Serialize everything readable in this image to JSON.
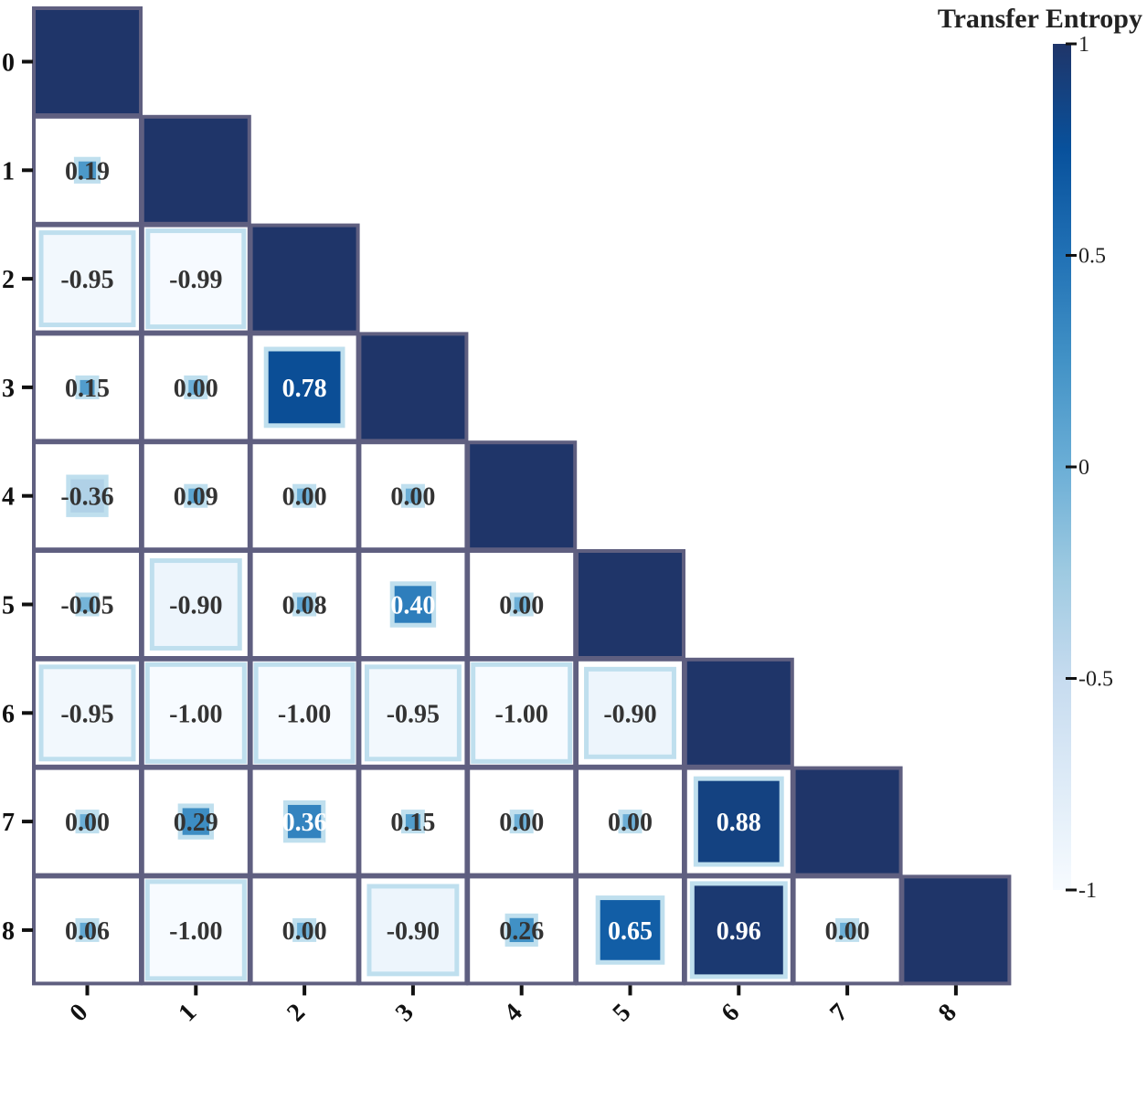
{
  "chart_data": {
    "type": "heatmap",
    "title": "",
    "xlabel": "",
    "ylabel": "",
    "x_categories": [
      "0",
      "1",
      "2",
      "3",
      "4",
      "5",
      "6",
      "7",
      "8"
    ],
    "y_categories": [
      "0",
      "1",
      "2",
      "3",
      "4",
      "5",
      "6",
      "7",
      "8"
    ],
    "mask": "upper-triangle (diagonal drawn as solid filled cells)",
    "values": [
      [
        1.0,
        null,
        null,
        null,
        null,
        null,
        null,
        null,
        null
      ],
      [
        0.19,
        1.0,
        null,
        null,
        null,
        null,
        null,
        null,
        null
      ],
      [
        -0.95,
        -0.99,
        1.0,
        null,
        null,
        null,
        null,
        null,
        null
      ],
      [
        0.15,
        0.0,
        0.78,
        1.0,
        null,
        null,
        null,
        null,
        null
      ],
      [
        -0.36,
        0.09,
        0.0,
        0.0,
        1.0,
        null,
        null,
        null,
        null
      ],
      [
        -0.05,
        -0.9,
        0.08,
        0.4,
        0.0,
        1.0,
        null,
        null,
        null
      ],
      [
        -0.95,
        -1.0,
        -1.0,
        -0.95,
        -1.0,
        -0.9,
        1.0,
        null,
        null
      ],
      [
        0.0,
        0.29,
        0.36,
        0.15,
        0.0,
        0.0,
        0.88,
        1.0,
        null
      ],
      [
        0.06,
        -1.0,
        0.0,
        -0.9,
        0.26,
        0.65,
        0.96,
        0.0,
        1.0
      ]
    ],
    "labels": [
      [
        null,
        null,
        null,
        null,
        null,
        null,
        null,
        null,
        null
      ],
      [
        "0.19",
        null,
        null,
        null,
        null,
        null,
        null,
        null,
        null
      ],
      [
        "-0.95",
        "-0.99",
        null,
        null,
        null,
        null,
        null,
        null,
        null
      ],
      [
        "0.15",
        "0.00",
        "0.78",
        null,
        null,
        null,
        null,
        null,
        null
      ],
      [
        "-0.36",
        "0.09",
        "0.00",
        "0.00",
        null,
        null,
        null,
        null,
        null
      ],
      [
        "-0.05",
        "-0.90",
        "0.08",
        "0.40",
        "0.00",
        null,
        null,
        null,
        null
      ],
      [
        "-0.95",
        "-1.00",
        "-1.00",
        "-0.95",
        "-1.00",
        "-0.90",
        null,
        null,
        null
      ],
      [
        "0.00",
        "0.29",
        "0.36",
        "0.15",
        "0.00",
        "0.00",
        "0.88",
        null,
        null
      ],
      [
        "0.06",
        "-1.00",
        "0.00",
        "-0.90",
        "0.26",
        "0.65",
        "0.96",
        "0.00",
        null
      ]
    ],
    "colorbar": {
      "title": "Transfer Entropy",
      "range": [
        -1,
        1
      ],
      "ticks": [
        1,
        0.5,
        0,
        -0.5,
        -1
      ],
      "tick_labels": [
        "1",
        "0.5",
        "0",
        "-0.5",
        "-1"
      ]
    },
    "colors": {
      "cell_border": "#5f5f80",
      "halo": "#bfdfee",
      "diagonal": "#1f3569",
      "scale": [
        "#f7fbff",
        "#deebf7",
        "#c6dbef",
        "#9ecae1",
        "#6baed6",
        "#4292c6",
        "#2171b5",
        "#08519c",
        "#1f3569"
      ]
    }
  }
}
